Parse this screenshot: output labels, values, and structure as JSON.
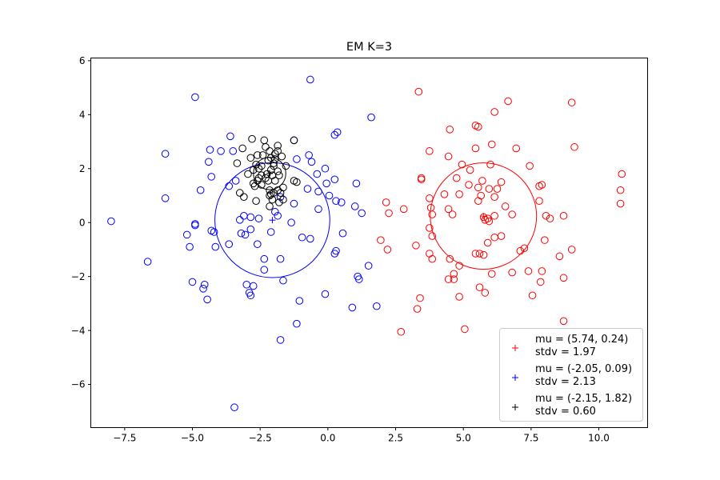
{
  "chart_data": {
    "type": "scatter",
    "title": "EM K=3",
    "xlabel": "",
    "ylabel": "",
    "xlim": [
      -8.75,
      11.8
    ],
    "ylim": [
      -7.6,
      6.1
    ],
    "xticks": [
      -7.5,
      -5.0,
      -2.5,
      0.0,
      2.5,
      5.0,
      7.5,
      10.0
    ],
    "xtick_labels": [
      "−7.5",
      "−5.0",
      "−2.5",
      "0.0",
      "2.5",
      "5.0",
      "7.5",
      "10.0"
    ],
    "yticks": [
      -6,
      -4,
      -2,
      0,
      2,
      4,
      6
    ],
    "ytick_labels": [
      "−6",
      "−4",
      "−2",
      "0",
      "2",
      "4",
      "6"
    ],
    "grid": false,
    "legend_position": "lower-right",
    "series": [
      {
        "name": "cluster-red",
        "color": "#ff0000",
        "mu": [
          5.74,
          0.24
        ],
        "stdv": 1.97,
        "legend_line1": "mu = (5.74, 0.24)",
        "legend_line2": " stdv = 1.97",
        "points": [
          [
            3.35,
            4.85
          ],
          [
            6.65,
            4.5
          ],
          [
            9.0,
            4.45
          ],
          [
            6.15,
            4.1
          ],
          [
            5.45,
            3.6
          ],
          [
            5.55,
            3.55
          ],
          [
            4.5,
            3.45
          ],
          [
            6.95,
            2.75
          ],
          [
            6.05,
            2.9
          ],
          [
            5.45,
            2.75
          ],
          [
            3.75,
            2.65
          ],
          [
            9.1,
            2.8
          ],
          [
            4.45,
            2.45
          ],
          [
            5.25,
            1.95
          ],
          [
            4.95,
            2.15
          ],
          [
            6.0,
            2.15
          ],
          [
            7.45,
            2.1
          ],
          [
            10.85,
            1.8
          ],
          [
            3.45,
            1.65
          ],
          [
            3.45,
            1.6
          ],
          [
            4.75,
            1.65
          ],
          [
            5.7,
            1.55
          ],
          [
            6.4,
            1.5
          ],
          [
            5.2,
            1.4
          ],
          [
            5.55,
            1.3
          ],
          [
            5.95,
            1.25
          ],
          [
            6.25,
            1.25
          ],
          [
            7.8,
            1.35
          ],
          [
            7.9,
            1.4
          ],
          [
            10.8,
            1.2
          ],
          [
            4.3,
            1.05
          ],
          [
            4.85,
            1.05
          ],
          [
            5.65,
            1.0
          ],
          [
            6.15,
            0.95
          ],
          [
            3.75,
            0.9
          ],
          [
            5.55,
            0.8
          ],
          [
            7.8,
            0.8
          ],
          [
            10.8,
            0.7
          ],
          [
            2.15,
            0.75
          ],
          [
            6.55,
            0.6
          ],
          [
            2.8,
            0.5
          ],
          [
            3.8,
            0.55
          ],
          [
            4.45,
            0.5
          ],
          [
            4.6,
            0.3
          ],
          [
            2.25,
            0.35
          ],
          [
            3.85,
            0.3
          ],
          [
            6.15,
            0.25
          ],
          [
            6.8,
            0.3
          ],
          [
            8.05,
            0.25
          ],
          [
            8.2,
            0.15
          ],
          [
            8.7,
            0.25
          ],
          [
            5.9,
            0.15
          ],
          [
            5.8,
            0.1
          ],
          [
            5.75,
            0.2
          ],
          [
            5.95,
            0.05
          ],
          [
            3.75,
            -0.2
          ],
          [
            3.85,
            -0.5
          ],
          [
            6.4,
            -0.5
          ],
          [
            6.15,
            -0.55
          ],
          [
            8.0,
            -0.65
          ],
          [
            5.9,
            -0.75
          ],
          [
            3.25,
            -0.85
          ],
          [
            7.25,
            -0.95
          ],
          [
            7.1,
            -1.05
          ],
          [
            9.0,
            -1.0
          ],
          [
            5.45,
            -1.15
          ],
          [
            5.6,
            -1.15
          ],
          [
            5.75,
            -1.2
          ],
          [
            8.55,
            -1.25
          ],
          [
            3.75,
            -1.15
          ],
          [
            3.85,
            -1.35
          ],
          [
            4.5,
            -1.35
          ],
          [
            4.85,
            -1.6
          ],
          [
            7.4,
            -1.8
          ],
          [
            7.9,
            -1.8
          ],
          [
            6.8,
            -1.85
          ],
          [
            6.05,
            -1.9
          ],
          [
            4.65,
            -1.9
          ],
          [
            4.45,
            -2.1
          ],
          [
            4.65,
            -2.1
          ],
          [
            7.85,
            -2.2
          ],
          [
            8.7,
            -2.05
          ],
          [
            5.6,
            -2.4
          ],
          [
            5.8,
            -2.6
          ],
          [
            7.55,
            -2.7
          ],
          [
            4.85,
            -2.75
          ],
          [
            3.4,
            -2.8
          ],
          [
            3.3,
            -3.2
          ],
          [
            8.7,
            -3.65
          ],
          [
            5.05,
            -3.95
          ],
          [
            2.7,
            -4.05
          ],
          [
            2.2,
            -1.0
          ],
          [
            1.95,
            -0.65
          ]
        ]
      },
      {
        "name": "cluster-blue",
        "color": "#0000ff",
        "mu": [
          -2.05,
          0.09
        ],
        "stdv": 2.13,
        "legend_line1": "mu = (-2.05, 0.09)",
        "legend_line2": " stdv = 2.13",
        "points": [
          [
            -0.65,
            5.3
          ],
          [
            -4.9,
            4.65
          ],
          [
            1.6,
            3.9
          ],
          [
            0.35,
            3.35
          ],
          [
            0.25,
            3.25
          ],
          [
            -3.6,
            3.2
          ],
          [
            -1.25,
            3.05
          ],
          [
            -4.35,
            2.7
          ],
          [
            -3.95,
            2.65
          ],
          [
            -3.5,
            2.65
          ],
          [
            -6.0,
            2.55
          ],
          [
            -0.7,
            2.5
          ],
          [
            -0.6,
            2.25
          ],
          [
            -4.4,
            2.25
          ],
          [
            -1.15,
            2.35
          ],
          [
            -0.1,
            2.0
          ],
          [
            -0.4,
            1.8
          ],
          [
            -4.3,
            1.7
          ],
          [
            -3.4,
            1.55
          ],
          [
            0.25,
            1.6
          ],
          [
            -0.05,
            1.45
          ],
          [
            1.05,
            1.45
          ],
          [
            -3.65,
            1.35
          ],
          [
            -0.75,
            1.25
          ],
          [
            -0.35,
            1.15
          ],
          [
            -4.7,
            1.2
          ],
          [
            0.05,
            1.0
          ],
          [
            -1.75,
            0.95
          ],
          [
            -6.0,
            0.9
          ],
          [
            0.3,
            0.8
          ],
          [
            0.5,
            0.75
          ],
          [
            -1.25,
            0.7
          ],
          [
            -0.35,
            0.5
          ],
          [
            1.0,
            0.6
          ],
          [
            -1.95,
            0.4
          ],
          [
            1.25,
            0.35
          ],
          [
            -1.85,
            0.25
          ],
          [
            -2.85,
            0.2
          ],
          [
            -3.1,
            0.25
          ],
          [
            -3.25,
            0.1
          ],
          [
            -2.55,
            0.15
          ],
          [
            -1.35,
            0.0
          ],
          [
            -8.0,
            0.05
          ],
          [
            -4.9,
            -0.05
          ],
          [
            -4.9,
            -0.1
          ],
          [
            -2.85,
            -0.25
          ],
          [
            -3.2,
            -0.4
          ],
          [
            -3.05,
            -0.45
          ],
          [
            -4.3,
            -0.3
          ],
          [
            -4.2,
            -0.35
          ],
          [
            -5.2,
            -0.45
          ],
          [
            -2.1,
            -0.35
          ],
          [
            0.55,
            -0.4
          ],
          [
            -0.95,
            -0.55
          ],
          [
            -0.65,
            -0.6
          ],
          [
            -3.65,
            -0.8
          ],
          [
            -4.15,
            -0.9
          ],
          [
            -5.1,
            -0.9
          ],
          [
            -2.6,
            -0.8
          ],
          [
            0.3,
            -1.05
          ],
          [
            0.25,
            -1.15
          ],
          [
            -6.65,
            -1.45
          ],
          [
            -2.35,
            -1.35
          ],
          [
            -1.75,
            -1.35
          ],
          [
            1.5,
            -1.6
          ],
          [
            -2.35,
            -1.75
          ],
          [
            1.1,
            -2.0
          ],
          [
            1.15,
            -2.1
          ],
          [
            -5.0,
            -2.2
          ],
          [
            -4.55,
            -2.3
          ],
          [
            -4.6,
            -2.45
          ],
          [
            -1.65,
            -2.15
          ],
          [
            -3.0,
            -2.3
          ],
          [
            -2.75,
            -2.35
          ],
          [
            -2.9,
            -2.6
          ],
          [
            -2.85,
            -2.7
          ],
          [
            -0.1,
            -2.65
          ],
          [
            -4.45,
            -2.85
          ],
          [
            -1.05,
            -2.9
          ],
          [
            0.9,
            -3.15
          ],
          [
            1.8,
            -3.1
          ],
          [
            -1.15,
            -3.75
          ],
          [
            -1.75,
            -4.35
          ],
          [
            -3.45,
            -6.85
          ]
        ]
      },
      {
        "name": "cluster-black",
        "color": "#000000",
        "mu": [
          -2.15,
          1.82
        ],
        "stdv": 0.6,
        "legend_line1": "mu = (-2.15, 1.82)",
        "legend_line2": " stdv = 0.60",
        "points": [
          [
            -1.25,
            3.05
          ],
          [
            -2.8,
            3.1
          ],
          [
            -2.35,
            3.05
          ],
          [
            -1.85,
            2.85
          ],
          [
            -2.3,
            2.8
          ],
          [
            -3.15,
            2.75
          ],
          [
            -2.15,
            2.65
          ],
          [
            -1.85,
            2.65
          ],
          [
            -2.4,
            2.5
          ],
          [
            -1.95,
            2.55
          ],
          [
            -2.6,
            2.5
          ],
          [
            -1.7,
            2.45
          ],
          [
            -2.85,
            2.4
          ],
          [
            -2.1,
            2.4
          ],
          [
            -1.95,
            2.35
          ],
          [
            -2.2,
            2.3
          ],
          [
            -3.35,
            2.2
          ],
          [
            -2.65,
            2.15
          ],
          [
            -2.45,
            2.1
          ],
          [
            -2.0,
            2.1
          ],
          [
            -1.55,
            2.1
          ],
          [
            -2.55,
            2.0
          ],
          [
            -2.75,
            1.95
          ],
          [
            -2.1,
            1.95
          ],
          [
            -1.85,
            1.9
          ],
          [
            -2.95,
            1.8
          ],
          [
            -2.45,
            1.75
          ],
          [
            -2.25,
            1.8
          ],
          [
            -2.05,
            1.75
          ],
          [
            -1.8,
            1.75
          ],
          [
            -2.55,
            1.65
          ],
          [
            -2.3,
            1.65
          ],
          [
            -2.6,
            1.55
          ],
          [
            -2.2,
            1.55
          ],
          [
            -1.95,
            1.55
          ],
          [
            -2.75,
            1.45
          ],
          [
            -1.15,
            1.5
          ],
          [
            -1.25,
            1.55
          ],
          [
            -2.7,
            1.35
          ],
          [
            -2.45,
            1.4
          ],
          [
            -2.15,
            1.2
          ],
          [
            -1.85,
            1.2
          ],
          [
            -1.75,
            1.1
          ],
          [
            -2.0,
            1.1
          ],
          [
            -2.15,
            1.0
          ],
          [
            -3.25,
            1.1
          ],
          [
            -3.1,
            0.95
          ],
          [
            -2.65,
            0.8
          ],
          [
            -2.05,
            0.85
          ],
          [
            -1.8,
            0.75
          ],
          [
            -1.65,
            0.85
          ],
          [
            -2.15,
            0.6
          ],
          [
            -1.65,
            1.3
          ],
          [
            -2.1,
            1.05
          ],
          [
            -2.0,
            2.2
          ]
        ]
      }
    ]
  }
}
